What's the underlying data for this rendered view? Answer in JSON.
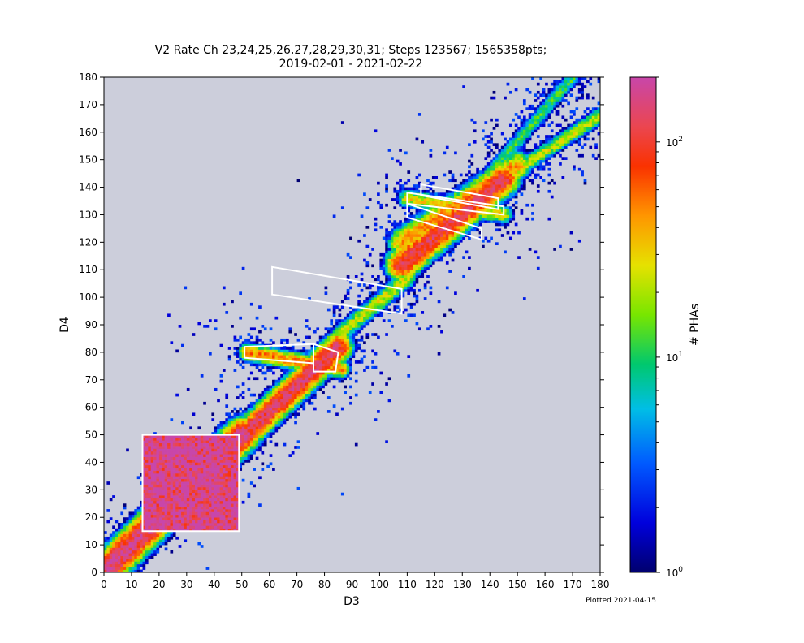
{
  "chart_data": {
    "type": "heatmap",
    "title_line1": "V2 Rate Ch 23,24,25,26,27,28,29,30,31; Steps 123567; 1565358pts;",
    "title_line2": "2019-02-01 - 2021-02-22",
    "xlabel": "D3",
    "ylabel": "D4",
    "xlim": [
      0,
      180
    ],
    "ylim": [
      0,
      180
    ],
    "xticks": [
      0,
      10,
      20,
      30,
      40,
      50,
      60,
      70,
      80,
      90,
      100,
      110,
      120,
      130,
      140,
      150,
      160,
      170,
      180
    ],
    "yticks": [
      0,
      10,
      20,
      30,
      40,
      50,
      60,
      70,
      80,
      90,
      100,
      110,
      120,
      130,
      140,
      150,
      160,
      170,
      180
    ],
    "colorbar": {
      "label": "# PHAs",
      "scale": "log",
      "range": [
        1,
        200
      ],
      "tick_labels": [
        {
          "value": 1,
          "base": "10",
          "exp": "0"
        },
        {
          "value": 10,
          "base": "10",
          "exp": "1"
        },
        {
          "value": 100,
          "base": "10",
          "exp": "2"
        }
      ],
      "colormap": "jet-like (navy → blue → cyan → green → yellow → orange → red → pink)"
    },
    "background_color": "#cccedb",
    "density_bands": [
      {
        "x0": 0,
        "y0": 0,
        "x1": 50,
        "y1": 50,
        "peak": 180,
        "width": 2.6
      },
      {
        "x0": 49,
        "y0": 48,
        "x1": 85,
        "y1": 82,
        "peak": 140,
        "width": 2.2
      },
      {
        "x0": 52,
        "y0": 80,
        "x1": 86,
        "y1": 74,
        "peak": 60,
        "width": 1.4
      },
      {
        "x0": 85,
        "y0": 86,
        "x1": 110,
        "y1": 107,
        "peak": 25,
        "width": 1.5
      },
      {
        "x0": 108,
        "y0": 112,
        "x1": 145,
        "y1": 143,
        "peak": 120,
        "width": 2.5
      },
      {
        "x0": 108,
        "y0": 120,
        "x1": 150,
        "y1": 148,
        "peak": 50,
        "width": 2.2
      },
      {
        "x0": 110,
        "y0": 136,
        "x1": 145,
        "y1": 130,
        "peak": 30,
        "width": 1.5
      },
      {
        "x0": 140,
        "y0": 140,
        "x1": 180,
        "y1": 166,
        "peak": 25,
        "width": 1.3
      },
      {
        "x0": 140,
        "y0": 145,
        "x1": 170,
        "y1": 180,
        "peak": 12,
        "width": 1.3
      }
    ],
    "saturated_box": {
      "x0": 14,
      "y0": 15,
      "x1": 49,
      "y1": 50,
      "value": 200
    },
    "overlay_boxes": [
      [
        [
          14,
          15
        ],
        [
          49,
          15
        ],
        [
          49,
          50
        ],
        [
          14,
          50
        ]
      ],
      [
        [
          51,
          82
        ],
        [
          76,
          83
        ],
        [
          76,
          76
        ],
        [
          51,
          78
        ]
      ],
      [
        [
          76,
          83
        ],
        [
          85,
          80
        ],
        [
          84,
          73
        ],
        [
          76,
          73
        ]
      ],
      [
        [
          61,
          111
        ],
        [
          108,
          103
        ],
        [
          108,
          94
        ],
        [
          61,
          101
        ]
      ],
      [
        [
          110,
          138
        ],
        [
          145,
          133
        ],
        [
          145,
          130
        ],
        [
          110,
          134
        ]
      ],
      [
        [
          110,
          134
        ],
        [
          137,
          125
        ],
        [
          137,
          121
        ],
        [
          110,
          129
        ]
      ],
      [
        [
          115,
          141
        ],
        [
          143,
          136
        ],
        [
          143,
          132
        ],
        [
          115,
          137
        ]
      ]
    ],
    "footnote": "Plotted 2021-04-15"
  }
}
